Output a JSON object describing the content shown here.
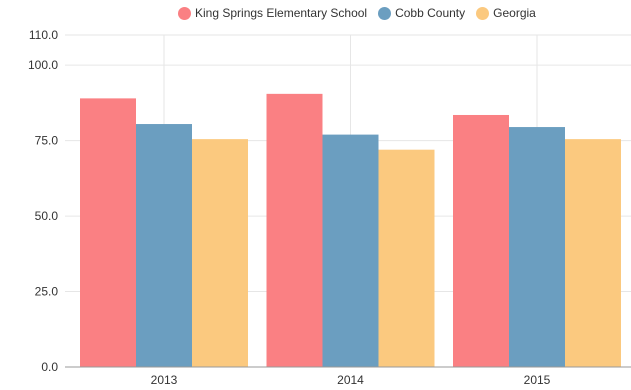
{
  "chart_data": {
    "type": "bar",
    "categories": [
      "2013",
      "2014",
      "2015"
    ],
    "series": [
      {
        "name": "King Springs Elementary School",
        "values": [
          89,
          90.5,
          83.5
        ],
        "color": "#fa8083"
      },
      {
        "name": "Cobb County",
        "values": [
          80.5,
          77,
          79.5
        ],
        "color": "#6b9ec0"
      },
      {
        "name": "Georgia",
        "values": [
          75.5,
          72,
          75.5
        ],
        "color": "#fbc97f"
      }
    ],
    "title": "",
    "xlabel": "",
    "ylabel": "",
    "ylim": [
      0,
      110
    ],
    "yticks": [
      "0.0",
      "25.0",
      "50.0",
      "75.0",
      "100.0",
      "110.0"
    ],
    "grid": true,
    "legend_position": "top-right"
  }
}
